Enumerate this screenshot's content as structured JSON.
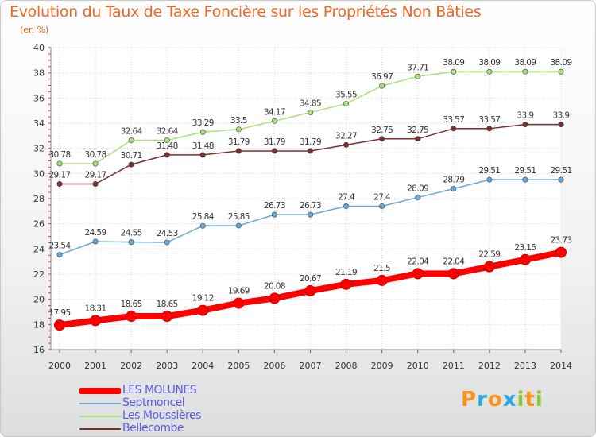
{
  "header": {
    "title": "Evolution du Taux de Taxe Foncière sur les Propriétés Non Bâties",
    "subtitle": "(en %)"
  },
  "logo": {
    "letters": [
      "P",
      "r",
      "o",
      "x",
      "i",
      "t",
      "i"
    ],
    "colors": [
      "#f7941d",
      "#29abe2",
      "#f7941d",
      "#29abe2",
      "#8dc63f",
      "#f7941d",
      "#8dc63f"
    ]
  },
  "chart_data": {
    "type": "line",
    "x": [
      "2000",
      "2001",
      "2002",
      "2003",
      "2004",
      "2005",
      "2006",
      "2007",
      "2008",
      "2009",
      "2010",
      "2011",
      "2012",
      "2013",
      "2014"
    ],
    "ylim": [
      16,
      40
    ],
    "yticks": [
      "16",
      "18",
      "20",
      "22",
      "24",
      "26",
      "28",
      "30",
      "32",
      "34",
      "36",
      "38",
      "40"
    ],
    "grid": true,
    "legend_position": "bottom-left",
    "series": [
      {
        "name": "LES MOLUNES",
        "color": "#ff0000",
        "values": [
          17.95,
          18.31,
          18.65,
          18.65,
          19.12,
          19.69,
          20.08,
          20.67,
          21.19,
          21.5,
          22.04,
          22.04,
          22.59,
          23.15,
          23.73
        ],
        "labels": [
          "17.95",
          "18.31",
          "18.65",
          "18.65",
          "19.12",
          "19.69",
          "20.08",
          "20.67",
          "21.19",
          "21.5",
          "22.04",
          "22.04",
          "22.59",
          "23.15",
          "23.73"
        ]
      },
      {
        "name": "Septmoncel",
        "color": "#6aa8d8",
        "values": [
          23.54,
          24.59,
          24.55,
          24.53,
          25.84,
          25.85,
          26.73,
          26.73,
          27.4,
          27.4,
          28.09,
          28.79,
          29.51,
          29.51,
          29.51
        ],
        "labels": [
          "23.54",
          "24.59",
          "24.55",
          "24.53",
          "25.84",
          "25.85",
          "26.73",
          "26.73",
          "27.4",
          "27.4",
          "28.09",
          "28.79",
          "29.51",
          "29.51",
          "29.51"
        ]
      },
      {
        "name": "Les Moussières",
        "color": "#a8e07a",
        "values": [
          30.78,
          30.78,
          32.64,
          32.64,
          33.29,
          33.5,
          34.17,
          34.85,
          35.55,
          36.97,
          37.71,
          38.09,
          38.09,
          38.09,
          38.09
        ],
        "labels": [
          "30.78",
          "30.78",
          "32.64",
          "32.64",
          "33.29",
          "33.5",
          "34.17",
          "34.85",
          "35.55",
          "36.97",
          "37.71",
          "38.09",
          "38.09",
          "38.09",
          "38.09"
        ]
      },
      {
        "name": "Bellecombe",
        "color": "#7a2f2f",
        "values": [
          29.17,
          29.17,
          30.71,
          31.48,
          31.48,
          31.79,
          31.79,
          31.79,
          32.27,
          32.75,
          32.75,
          33.57,
          33.57,
          33.9,
          33.9
        ],
        "labels": [
          "29.17",
          "29.17",
          "30.71",
          "31.48",
          "31.48",
          "31.79",
          "31.79",
          "31.79",
          "32.27",
          "32.75",
          "32.75",
          "33.57",
          "33.57",
          "33.9",
          "33.9"
        ]
      }
    ]
  }
}
